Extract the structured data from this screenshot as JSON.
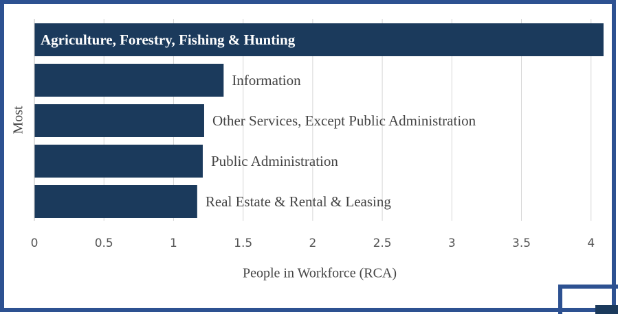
{
  "chart_data": {
    "type": "bar",
    "orientation": "horizontal",
    "categories": [
      "Agriculture, Forestry, Fishing & Hunting",
      "Information",
      "Other Services, Except Public Administration",
      "Public Administration",
      "Real Estate & Rental & Leasing"
    ],
    "values": [
      4.09,
      1.36,
      1.22,
      1.21,
      1.17
    ],
    "color": "#1b3a5c",
    "xlim": [
      0,
      4.1
    ],
    "xticks": [
      0,
      0.5,
      1,
      1.5,
      2,
      2.5,
      3,
      3.5,
      4
    ],
    "xlabel": "People in Workforce (RCA)",
    "ylabel": "Most",
    "grid": true
  }
}
